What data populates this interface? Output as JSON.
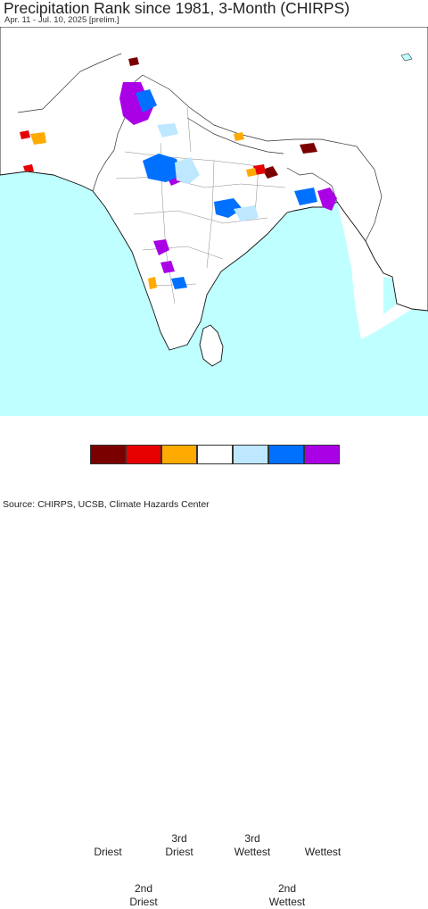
{
  "title": "Precipitation Rank since 1981, 3-Month (CHIRPS)",
  "subtitle": "Apr. 11 - Jul. 10, 2025 [prelim.]",
  "legend": {
    "top_labels": [
      "Driest",
      "3rd Driest",
      "3rd Wettest",
      "Wettest"
    ],
    "bottom_labels": [
      "2nd Driest",
      "2nd Wettest"
    ],
    "colors": [
      "#7a0000",
      "#e60000",
      "#ffaa00",
      "#ffffff",
      "#bee8ff",
      "#0070ff",
      "#aa00e6"
    ]
  },
  "source": "Source: CHIRPS, UCSB, Climate Hazards Center",
  "map": {
    "background_color": "#ffffff",
    "water_color": "#bfffff",
    "landmass_color": "#ffffff"
  }
}
